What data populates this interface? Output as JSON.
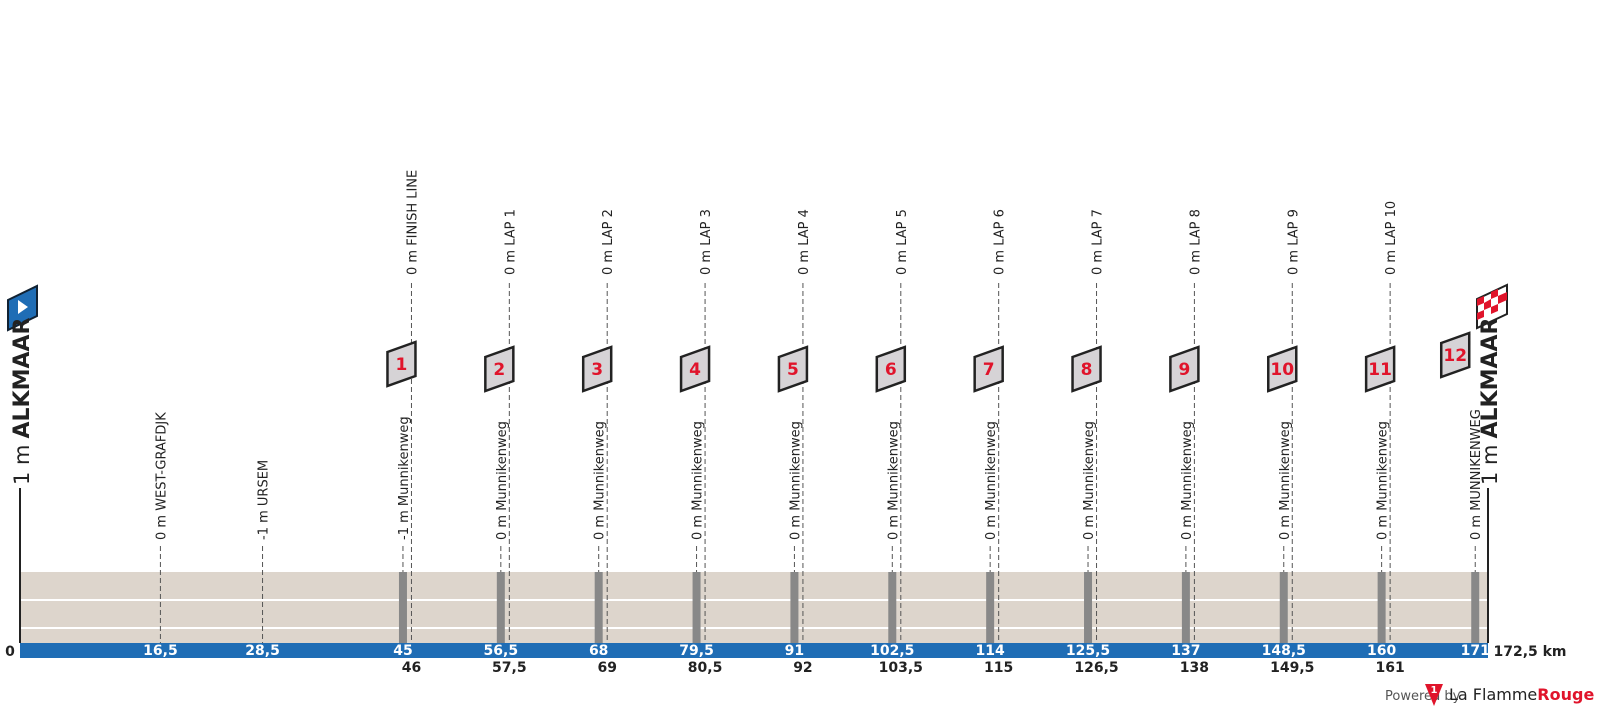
{
  "chart_data": {
    "type": "profile",
    "xlim": [
      0,
      172.5
    ],
    "ylim": [
      -5,
      1
    ],
    "x_start_label": "0",
    "x_end_label": "172,5 km",
    "start": {
      "altitude": "1 m",
      "name": "ALKMAAR"
    },
    "finish": {
      "altitude": "1 m",
      "name": "ALKMAAR"
    },
    "profile": {
      "x": [
        0,
        172.5
      ],
      "values": [
        1,
        1
      ],
      "color": "#ddd5cc"
    },
    "places": [
      {
        "km": {
          "value": 16.5,
          "label": "16,5"
        },
        "label": "0 m WEST-GRAFDJK"
      },
      {
        "km": {
          "value": 28.5,
          "label": "28,5"
        },
        "label": "-1 m URSEM"
      }
    ],
    "passages": [
      {
        "km": 45,
        "label": "-1 m Munnikenweg"
      },
      {
        "km": {
          "value": 56.5,
          "label": "56,5"
        },
        "label": "0 m Munnikenweg"
      },
      {
        "km": 68,
        "label": "0 m Munnikenweg"
      },
      {
        "km": {
          "value": 79.5,
          "label": "79,5"
        },
        "label": "0 m Munnikenweg"
      },
      {
        "km": 91,
        "label": "0 m Munnikenweg"
      },
      {
        "km": {
          "value": 102.5,
          "label": "102,5"
        },
        "label": "0 m Munnikenweg"
      },
      {
        "km": 114,
        "label": "0 m Munnikenweg"
      },
      {
        "km": {
          "value": 125.5,
          "label": "125,5"
        },
        "label": "0 m Munnikenweg"
      },
      {
        "km": 137,
        "label": "0 m Munnikenweg"
      },
      {
        "km": {
          "value": 148.5,
          "label": "148,5"
        },
        "label": "0 m Munnikenweg"
      },
      {
        "km": 160,
        "label": "0 m Munnikenweg"
      },
      {
        "km": 171,
        "label": "0 m MUNNIKENWEG",
        "marker": "12"
      }
    ],
    "laps": [
      {
        "km": 46,
        "label": "0 m FINISH LINE",
        "marker": "1"
      },
      {
        "km": {
          "value": 57.5,
          "label": "57,5"
        },
        "label": "0 m LAP 1",
        "marker": "2"
      },
      {
        "km": 69,
        "label": "0 m LAP 2",
        "marker": "3"
      },
      {
        "km": {
          "value": 80.5,
          "label": "80,5"
        },
        "label": "0 m LAP 3",
        "marker": "4"
      },
      {
        "km": 92,
        "label": "0 m LAP 4",
        "marker": "5"
      },
      {
        "km": {
          "value": 103.5,
          "label": "103,5"
        },
        "label": "0 m LAP 5",
        "marker": "6"
      },
      {
        "km": 115,
        "label": "0 m LAP 6",
        "marker": "7"
      },
      {
        "km": {
          "value": 126.5,
          "label": "126,5"
        },
        "label": "0 m LAP 7",
        "marker": "8"
      },
      {
        "km": 138,
        "label": "0 m LAP 8",
        "marker": "9"
      },
      {
        "km": {
          "value": 149.5,
          "label": "149,5"
        },
        "label": "0 m LAP 9",
        "marker": "10"
      },
      {
        "km": 161,
        "label": "0 m LAP 10",
        "marker": "11"
      }
    ]
  },
  "footer": {
    "powered": "Powered by",
    "logo": "1",
    "brand": "La Flamme",
    "brand_accent": "Rouge"
  }
}
